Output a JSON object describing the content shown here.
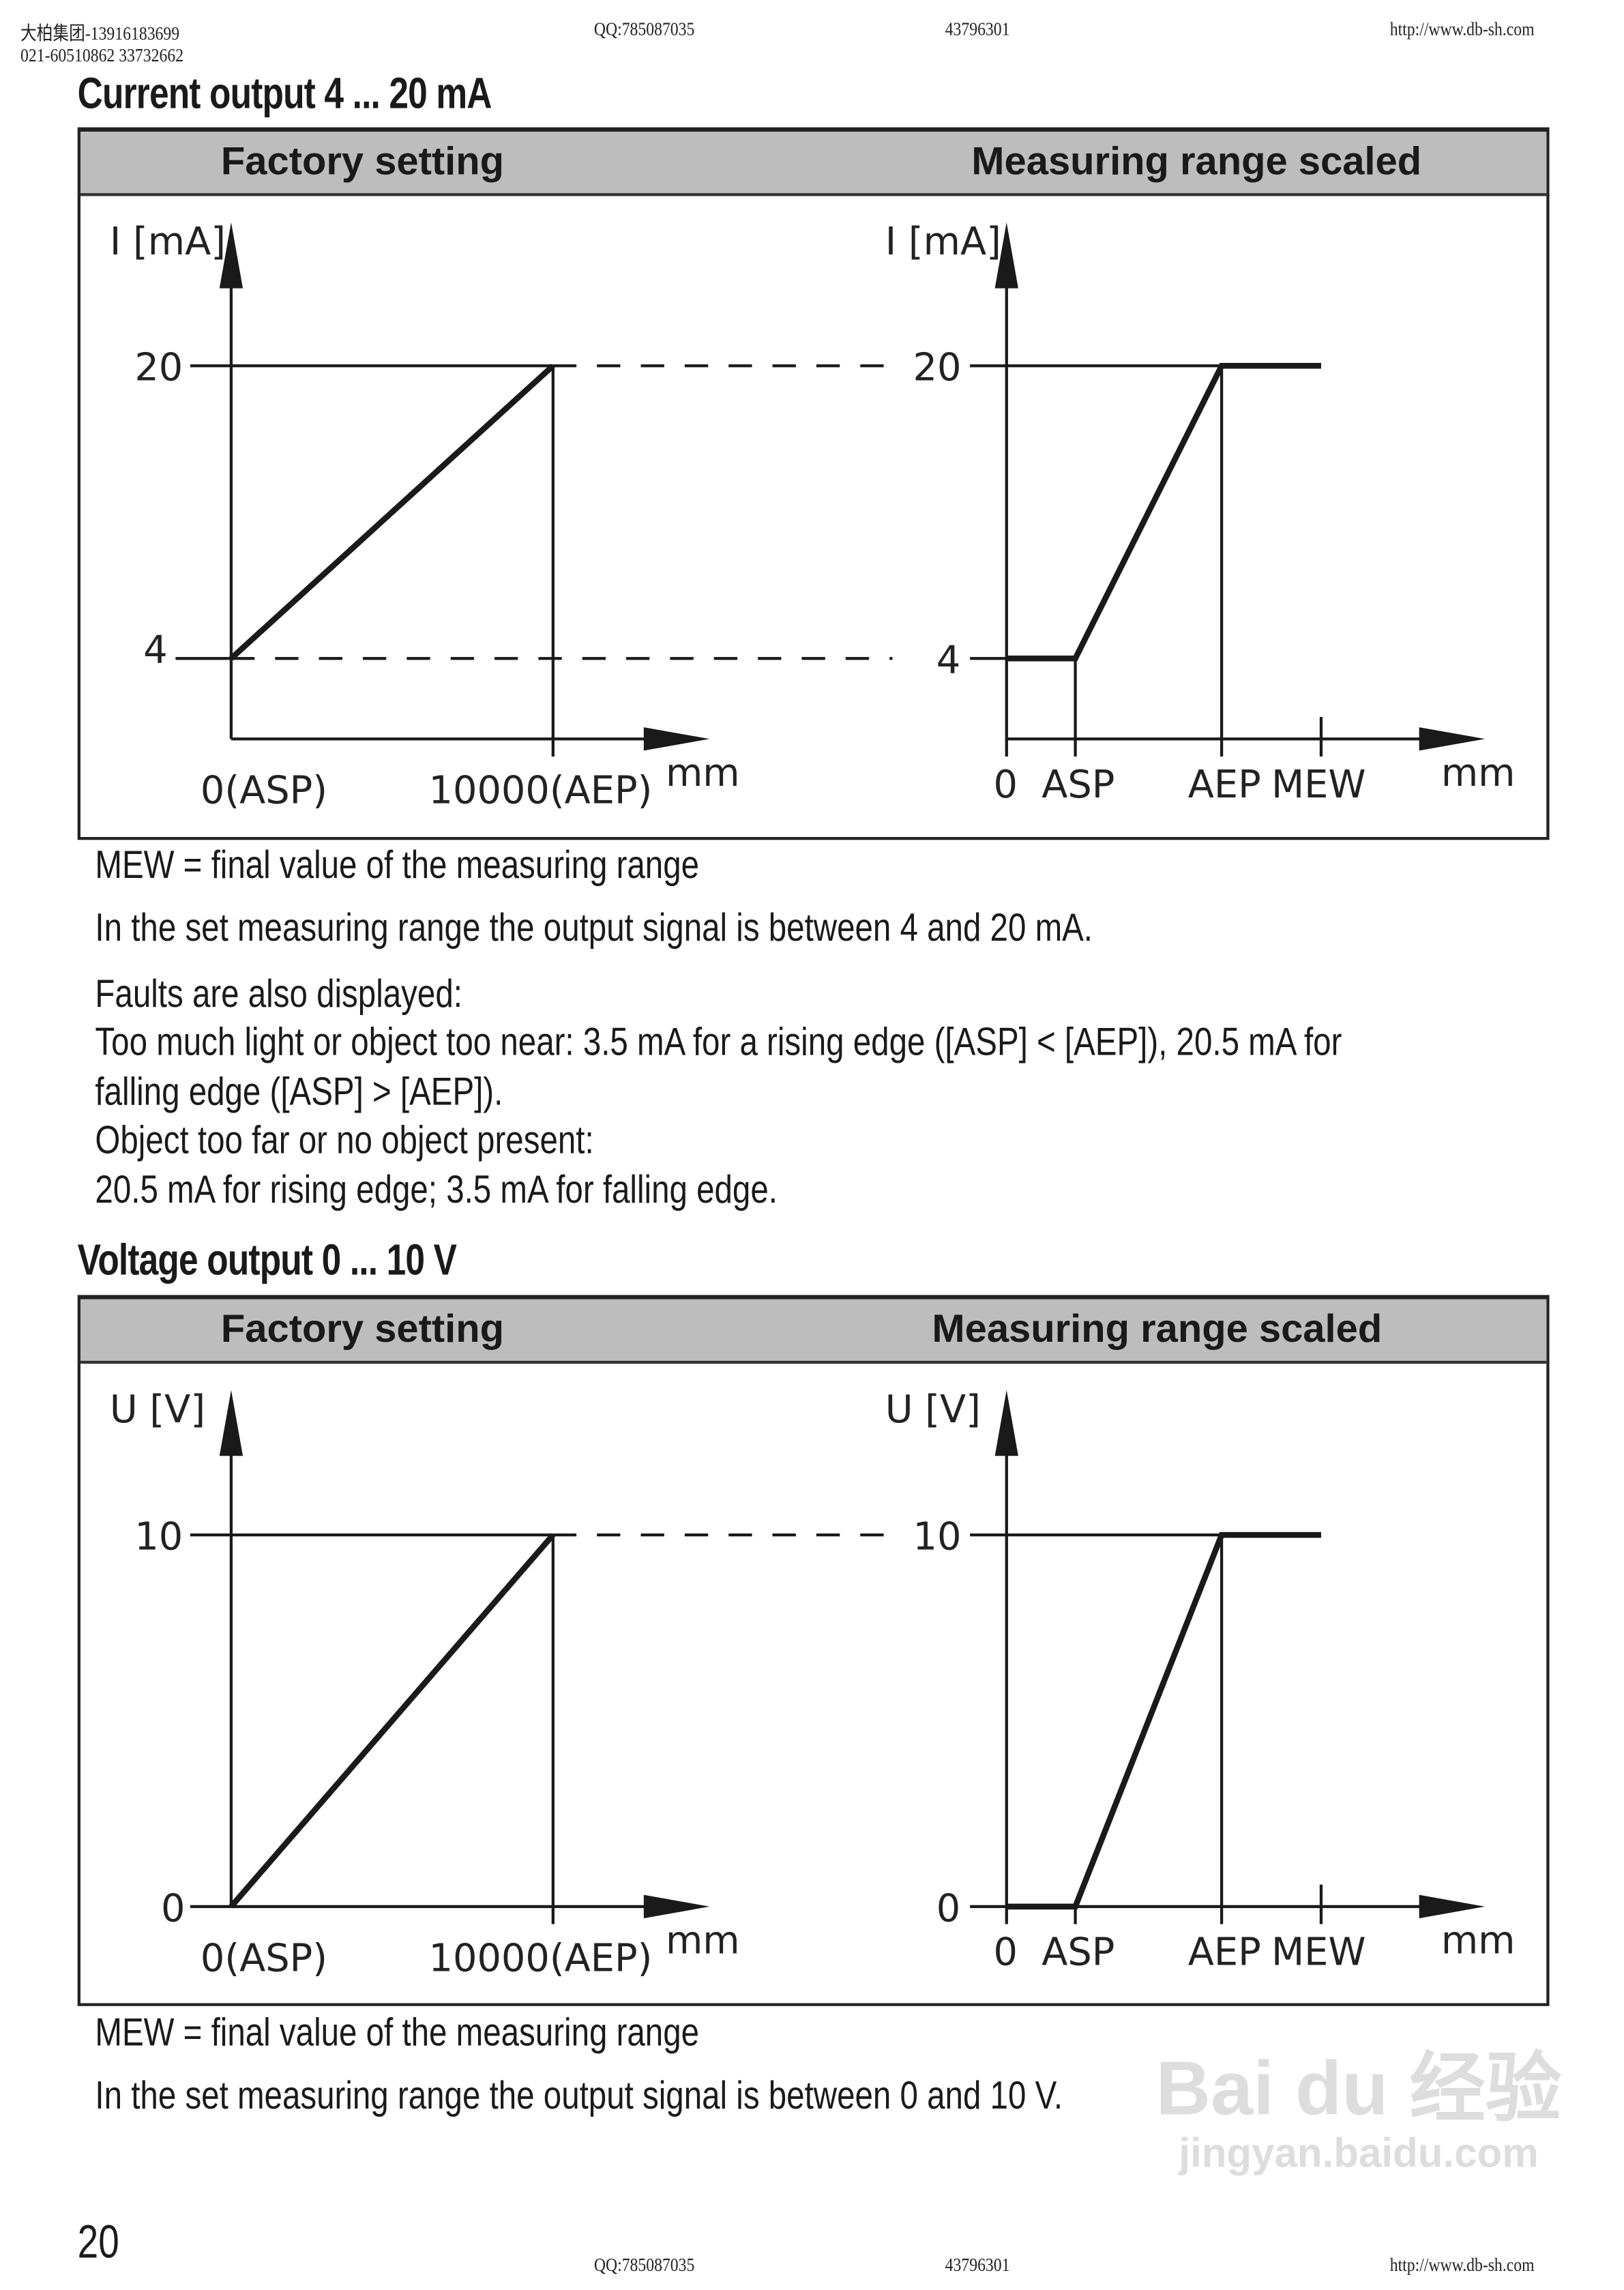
{
  "header": {
    "company": "大柏集团-13916183699",
    "phones": "021-60510862  33732662",
    "qq": "QQ:785087035",
    "number": "43796301",
    "url": "http://www.db-sh.com"
  },
  "current": {
    "title": "Current output 4 ... 20 mA",
    "band_left": "Factory setting",
    "band_right": "Measuring range scaled",
    "axis_y": "I [mA]",
    "y_high": "20",
    "y_low": "4",
    "x_unit": "mm",
    "left_x0": "0(ASP)",
    "left_x1": "10000(AEP)",
    "right_x0": "0",
    "right_asp": "ASP",
    "right_aep": "AEP",
    "right_mew": "MEW",
    "notes": [
      "MEW = final value of the measuring range",
      "In the set measuring range the output signal is between 4 and 20 mA.",
      "Faults are also displayed:",
      "Too much light or object too near: 3.5 mA for a rising edge ([ASP] < [AEP]), 20.5 mA for",
      "falling edge ([ASP] > [AEP]).",
      "Object too far or no object present:",
      "20.5 mA for rising edge; 3.5 mA for falling edge."
    ]
  },
  "voltage": {
    "title": "Voltage output 0 ... 10 V",
    "band_left": "Factory setting",
    "band_right": "Measuring range scaled",
    "axis_y": "U [V]",
    "y_high": "10",
    "y_low": "0",
    "x_unit": "mm",
    "left_x0": "0(ASP)",
    "left_x1": "10000(AEP)",
    "right_x0": "0",
    "right_asp": "ASP",
    "right_aep": "AEP",
    "right_mew": "MEW",
    "notes": [
      "MEW = final value of the measuring range",
      "In the set measuring range the output signal is between 0 and 10 V."
    ]
  },
  "footer": {
    "page": "20",
    "qq": "QQ:785087035",
    "number": "43796301",
    "url": "http://www.db-sh.com"
  },
  "watermark": {
    "brand": "Bai du 经验",
    "site": "jingyan.baidu.com"
  }
}
